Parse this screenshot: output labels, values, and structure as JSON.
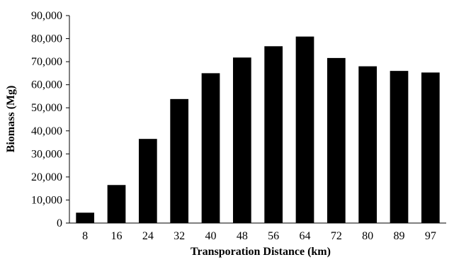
{
  "chart_data": {
    "type": "bar",
    "title": "",
    "xlabel": "Transporation Distance (km)",
    "ylabel": "Biomass (Mg)",
    "categories": [
      "8",
      "16",
      "24",
      "32",
      "40",
      "48",
      "56",
      "64",
      "72",
      "80",
      "89",
      "97"
    ],
    "values": [
      4500,
      16500,
      36500,
      53800,
      65000,
      71800,
      76700,
      80900,
      71600,
      68000,
      66000,
      65300
    ],
    "ylim": [
      0,
      90000
    ],
    "yticks": [
      0,
      10000,
      20000,
      30000,
      40000,
      50000,
      60000,
      70000,
      80000,
      90000
    ],
    "ytick_labels": [
      "0",
      "10,000",
      "20,000",
      "30,000",
      "40,000",
      "50,000",
      "60,000",
      "70,000",
      "80,000",
      "90,000"
    ],
    "grid": false,
    "legend": "none",
    "bar_color": "#000000"
  }
}
